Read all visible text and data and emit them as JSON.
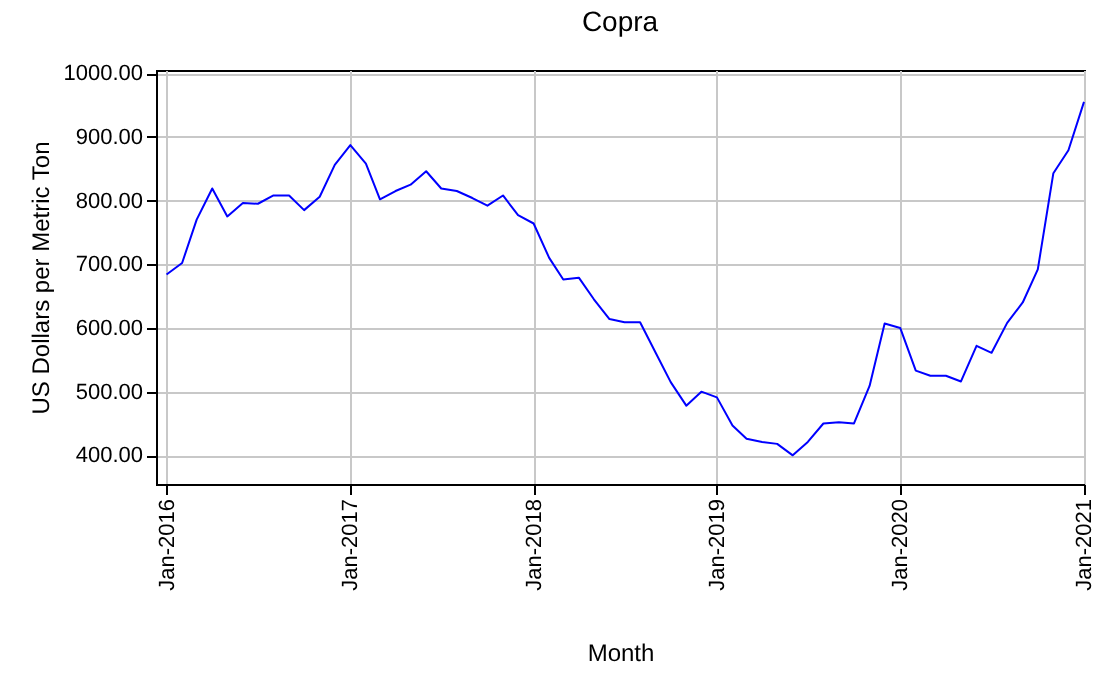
{
  "chart_data": {
    "type": "line",
    "title": "Copra",
    "xlabel": "Month",
    "ylabel": "US Dollars per Metric Ton",
    "x": [
      "2016-01",
      "2016-02",
      "2016-03",
      "2016-04",
      "2016-05",
      "2016-06",
      "2016-07",
      "2016-08",
      "2016-09",
      "2016-10",
      "2016-11",
      "2016-12",
      "2017-01",
      "2017-02",
      "2017-03",
      "2017-04",
      "2017-05",
      "2017-06",
      "2017-07",
      "2017-08",
      "2017-09",
      "2017-10",
      "2017-11",
      "2017-12",
      "2018-01",
      "2018-02",
      "2018-03",
      "2018-04",
      "2018-05",
      "2018-06",
      "2018-07",
      "2018-08",
      "2018-09",
      "2018-10",
      "2018-11",
      "2018-12",
      "2019-01",
      "2019-02",
      "2019-03",
      "2019-04",
      "2019-05",
      "2019-06",
      "2019-07",
      "2019-08",
      "2019-09",
      "2019-10",
      "2019-11",
      "2019-12",
      "2020-01",
      "2020-02",
      "2020-03",
      "2020-04",
      "2020-05",
      "2020-06",
      "2020-07",
      "2020-08",
      "2020-09",
      "2020-10",
      "2020-11",
      "2020-12",
      "2021-01"
    ],
    "series": [
      {
        "color": "#0000ff",
        "values": [
          684,
          702,
          770,
          819,
          775,
          796,
          795,
          808,
          808,
          785,
          806,
          856,
          887,
          858,
          802,
          815,
          825,
          846,
          819,
          815,
          804,
          792,
          808,
          777,
          764,
          710,
          676,
          679,
          645,
          614,
          609,
          609,
          561,
          515,
          478,
          500,
          491,
          447,
          426,
          421,
          418,
          400,
          421,
          450,
          452,
          450,
          509,
          607,
          600,
          533,
          525,
          525,
          516,
          572,
          561,
          608,
          640,
          692,
          843,
          879,
          955
        ]
      }
    ],
    "xlim": [
      "2015-12-11",
      "2021-01-01"
    ],
    "xticks": [
      {
        "value": "2016-01",
        "label": "Jan-2016"
      },
      {
        "value": "2017-01",
        "label": "Jan-2017"
      },
      {
        "value": "2018-01",
        "label": "Jan-2018"
      },
      {
        "value": "2019-01",
        "label": "Jan-2019"
      },
      {
        "value": "2020-01",
        "label": "Jan-2020"
      },
      {
        "value": "2021-01",
        "label": "Jan-2021"
      }
    ],
    "ylim": [
      355,
      1005
    ],
    "yticks": [
      {
        "value": 400,
        "label": "400.00"
      },
      {
        "value": 500,
        "label": "500.00"
      },
      {
        "value": 600,
        "label": "600.00"
      },
      {
        "value": 700,
        "label": "700.00"
      },
      {
        "value": 800,
        "label": "800.00"
      },
      {
        "value": 900,
        "label": "900.00"
      },
      {
        "value": 1000,
        "label": "1000.00"
      }
    ],
    "grid": true,
    "marker": "none",
    "line_style": "solid"
  }
}
